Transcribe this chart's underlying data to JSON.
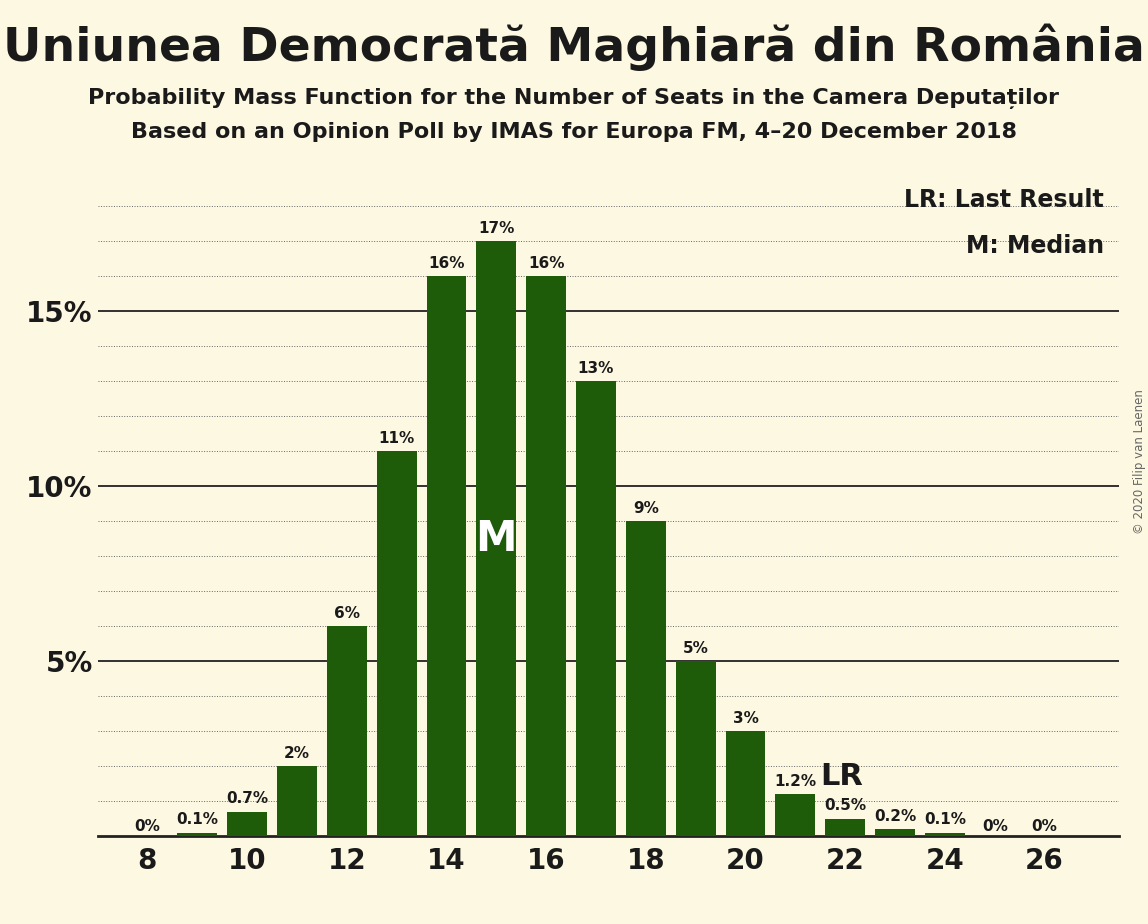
{
  "title": "Uniunea Democrată Maghiară din România",
  "subtitle1": "Probability Mass Function for the Number of Seats in the Camera Deputaților",
  "subtitle2": "Based on an Opinion Poll by IMAS for Europa FM, 4–20 December 2018",
  "copyright": "© 2020 Filip van Laenen",
  "seats": [
    8,
    9,
    10,
    11,
    12,
    13,
    14,
    15,
    16,
    17,
    18,
    19,
    20,
    21,
    22,
    23,
    24,
    25,
    26
  ],
  "probabilities": [
    0.0,
    0.1,
    0.7,
    2.0,
    6.0,
    11.0,
    16.0,
    17.0,
    16.0,
    13.0,
    9.0,
    5.0,
    3.0,
    1.2,
    0.5,
    0.2,
    0.1,
    0.0,
    0.0
  ],
  "bar_color": "#1e5c0a",
  "background_color": "#fdf8e1",
  "median_seat": 15,
  "lr_seat": 21,
  "yticks": [
    5,
    10,
    15
  ],
  "ylim": [
    0,
    19
  ],
  "xlim": [
    7.0,
    27.5
  ],
  "xlabel_seats": [
    8,
    10,
    12,
    14,
    16,
    18,
    20,
    22,
    24,
    26
  ],
  "legend_lr": "LR: Last Result",
  "legend_m": "M: Median",
  "bar_labels": [
    "0%",
    "0.1%",
    "0.7%",
    "2%",
    "6%",
    "11%",
    "16%",
    "17%",
    "16%",
    "13%",
    "9%",
    "5%",
    "3%",
    "1.2%",
    "0.5%",
    "0.2%",
    "0.1%",
    "0%",
    "0%"
  ],
  "bar_width": 0.8,
  "title_fontsize": 34,
  "subtitle_fontsize": 16,
  "tick_fontsize": 20,
  "bar_label_fontsize": 11,
  "legend_fontsize": 17,
  "m_label_fontsize": 30,
  "lr_label_fontsize": 22
}
